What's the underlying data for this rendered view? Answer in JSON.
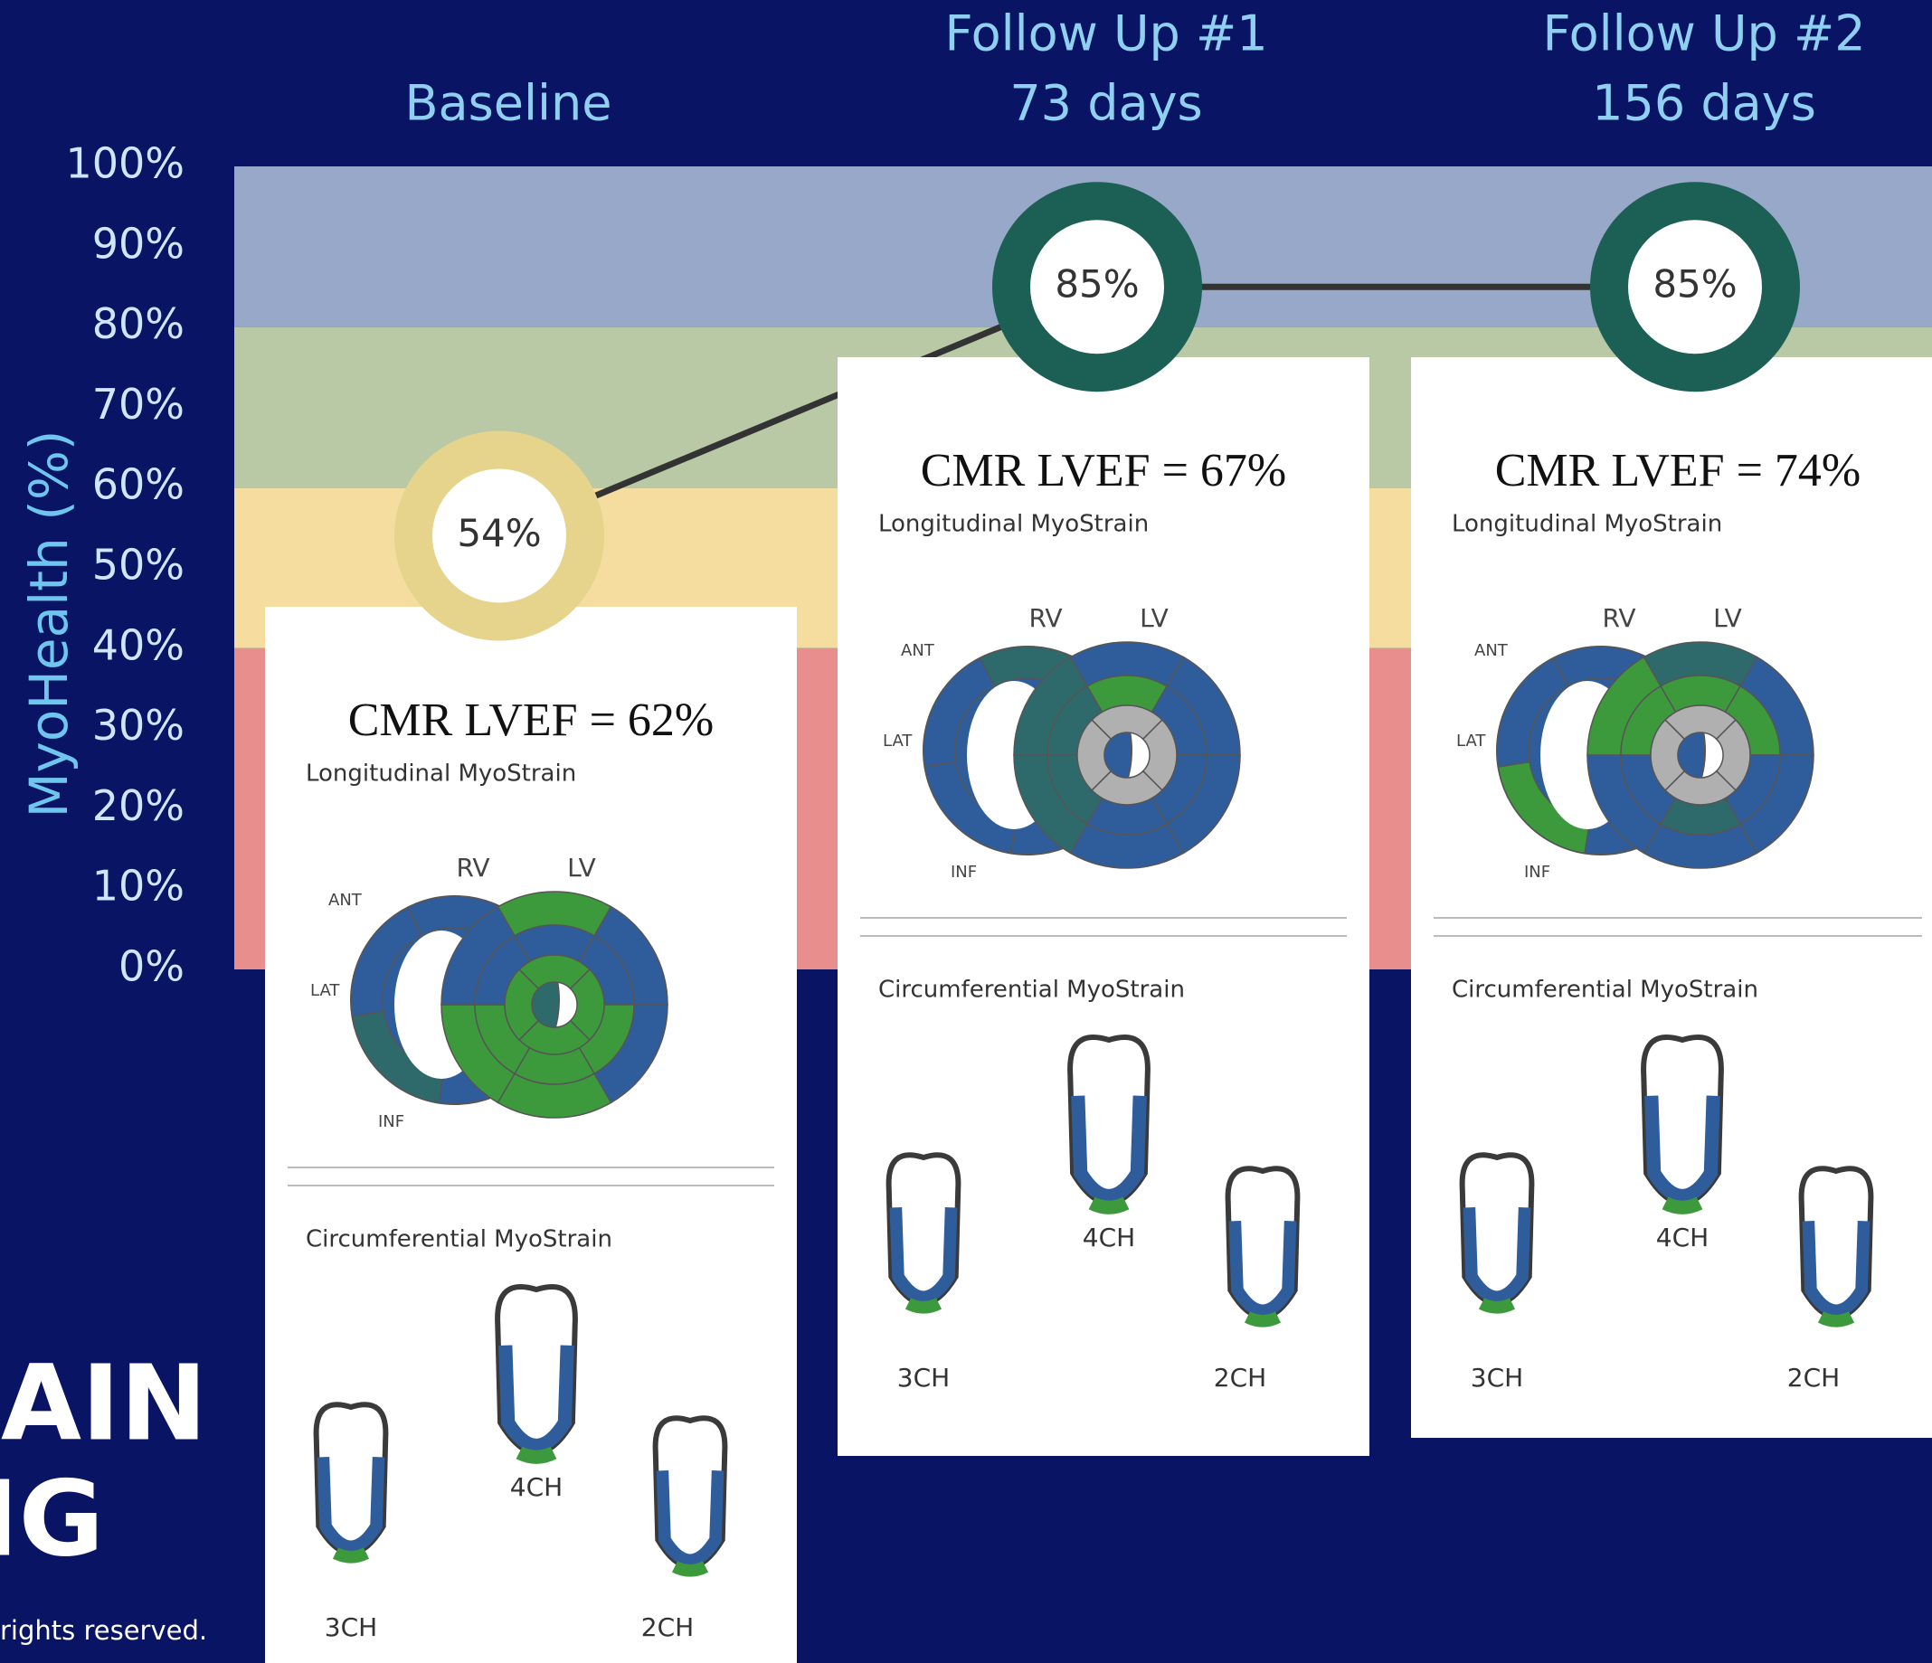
{
  "chart_data": {
    "type": "line",
    "y_label": "MyoHealth (%)",
    "categories": [
      "Baseline",
      "Follow Up #1",
      "Follow Up #2"
    ],
    "category_notes": [
      null,
      "73 days",
      "156 days"
    ],
    "series": [
      {
        "values": [
          54,
          85,
          85
        ],
        "value_labels": [
          "54%",
          "85%",
          "85%"
        ],
        "color": "#333333",
        "point_colors": [
          "#e6d48c",
          "#1c5f55",
          "#1c5f55"
        ]
      }
    ],
    "ylim": [
      0,
      100
    ],
    "yticks": [
      {
        "value": 0,
        "label": "0%"
      },
      {
        "value": 10,
        "label": "10%"
      },
      {
        "value": 20,
        "label": "20%"
      },
      {
        "value": 30,
        "label": "30%"
      },
      {
        "value": 40,
        "label": "40%"
      },
      {
        "value": 50,
        "label": "50%"
      },
      {
        "value": 60,
        "label": "60%"
      },
      {
        "value": 70,
        "label": "70%"
      },
      {
        "value": 80,
        "label": "80%"
      },
      {
        "value": 90,
        "label": "90%"
      },
      {
        "value": 100,
        "label": "100%"
      }
    ],
    "bands": [
      {
        "range": [
          0,
          40
        ],
        "color": "#e88e8c"
      },
      {
        "range": [
          40,
          60
        ],
        "color": "#f4dd9e"
      },
      {
        "range": [
          60,
          80
        ],
        "color": "#b9c9a6"
      },
      {
        "range": [
          80,
          100
        ],
        "color": "#97a8c8"
      }
    ]
  },
  "cards": [
    {
      "lvef": "CMR LVEF = 62%",
      "longitudinal_title": "Longitudinal MyoStrain",
      "rv": "RV",
      "lv": "LV",
      "ant": "ANT",
      "lat": "LAT",
      "inf": "INF",
      "circumferential_title": "Circumferential MyoStrain",
      "views": [
        "4CH",
        "3CH",
        "2CH"
      ]
    },
    {
      "lvef": "CMR LVEF = 67%",
      "longitudinal_title": "Longitudinal MyoStrain",
      "rv": "RV",
      "lv": "LV",
      "ant": "ANT",
      "lat": "LAT",
      "inf": "INF",
      "circumferential_title": "Circumferential MyoStrain",
      "views": [
        "4CH",
        "3CH",
        "2CH"
      ]
    },
    {
      "lvef": "CMR LVEF = 74%",
      "longitudinal_title": "Longitudinal MyoStrain",
      "rv": "RV",
      "lv": "LV",
      "ant": "ANT",
      "lat": "LAT",
      "inf": "INF",
      "circumferential_title": "Circumferential MyoStrain",
      "views": [
        "4CH",
        "3CH",
        "2CH"
      ]
    }
  ],
  "footer": {
    "title_lines": [
      "RAIN",
      "NG"
    ],
    "copyright": "rights reserved."
  }
}
